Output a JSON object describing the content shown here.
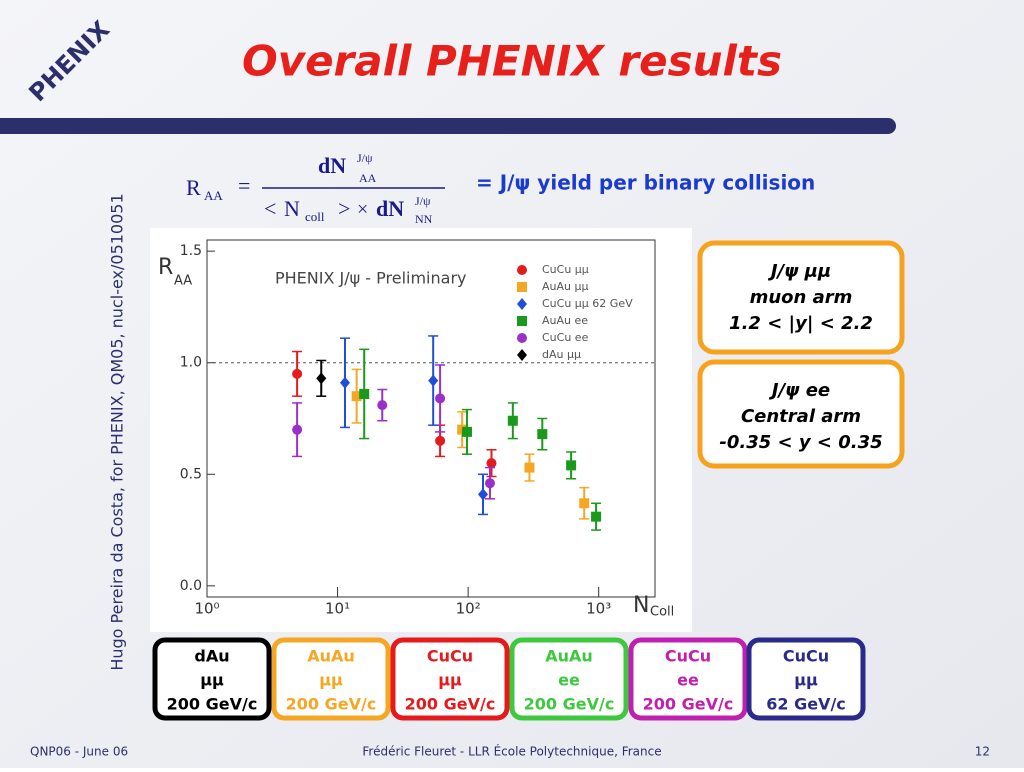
{
  "header": {
    "title": "Overall PHENIX results",
    "logo": "PHENIX"
  },
  "side_note": "Hugo Pereira da Costa, for PHENIX, QM05, nucl-ex/0510051",
  "formula": {
    "lhs": "R",
    "lhs_sub": "AA",
    "equals": "=",
    "num": "dN",
    "num_sup": "J/ψ",
    "num_sub": "AA",
    "den_open": "<",
    "den_n": "N",
    "den_n_sub": "coll",
    "den_close": ">",
    "den_times": "×",
    "den_dn": "dN",
    "den_sup": "J/ψ",
    "den_sub": "NN"
  },
  "formula_caption": "= J/ψ yield per binary collision",
  "chart_data": {
    "type": "scatter",
    "title": "PHENIX J/ψ - Preliminary",
    "ylabel": "R",
    "ylabel_sub": "AA",
    "xlabel": "N",
    "xlabel_sub": "Coll",
    "xscale": "log",
    "xlim": [
      1,
      2700
    ],
    "ylim": [
      -0.05,
      1.55
    ],
    "xticks": [
      {
        "value": 1,
        "label": "10⁰"
      },
      {
        "value": 10,
        "label": "10¹"
      },
      {
        "value": 100,
        "label": "10²"
      },
      {
        "value": 1000,
        "label": "10³"
      }
    ],
    "yticks": [
      {
        "value": 0,
        "label": "0.0"
      },
      {
        "value": 0.5,
        "label": "0.5"
      },
      {
        "value": 1,
        "label": "1.0"
      },
      {
        "value": 1.5,
        "label": "1.5"
      }
    ],
    "reference_line": 1,
    "series": [
      {
        "name": "CuCu μμ",
        "color": "#e41a1c",
        "marker": "circle",
        "x": [
          4.9,
          61,
          151
        ],
        "values": [
          0.95,
          0.65,
          0.55
        ],
        "errors": [
          0.1,
          0.07,
          0.06
        ]
      },
      {
        "name": "AuAu μμ",
        "color": "#f5a623",
        "marker": "square",
        "x": [
          14,
          90,
          295,
          775
        ],
        "values": [
          0.85,
          0.7,
          0.53,
          0.37
        ],
        "errors": [
          0.12,
          0.08,
          0.06,
          0.07
        ]
      },
      {
        "name": "CuCu μμ 62 GeV",
        "color": "#1f4fd8",
        "marker": "diamond",
        "x": [
          11.4,
          54,
          130
        ],
        "values": [
          0.91,
          0.92,
          0.41
        ],
        "errors": [
          0.2,
          0.2,
          0.09
        ]
      },
      {
        "name": "AuAu ee",
        "color": "#1a9a1a",
        "marker": "square",
        "x": [
          16,
          98,
          220,
          370,
          615,
          955
        ],
        "values": [
          0.86,
          0.69,
          0.74,
          0.68,
          0.54,
          0.31
        ],
        "errors": [
          0.2,
          0.1,
          0.08,
          0.07,
          0.06,
          0.06
        ]
      },
      {
        "name": "CuCu ee",
        "color": "#9b30c8",
        "marker": "circle",
        "x": [
          4.9,
          22,
          61,
          147
        ],
        "values": [
          0.7,
          0.81,
          0.84,
          0.46
        ],
        "errors": [
          0.12,
          0.07,
          0.15,
          0.07
        ]
      },
      {
        "name": "dAu μμ",
        "color": "#000000",
        "marker": "diamond",
        "x": [
          7.5
        ],
        "values": [
          0.93
        ],
        "errors": [
          0.08
        ]
      }
    ]
  },
  "boxes": [
    {
      "lines": [
        "J/ψ    μμ",
        "muon arm",
        "1.2 < |y| < 2.2"
      ]
    },
    {
      "lines": [
        "J/ψ    ee",
        "Central arm",
        "-0.35 < y < 0.35"
      ]
    }
  ],
  "buttons": [
    {
      "color": "#000000",
      "lines": [
        "dAu",
        "μμ",
        "200 GeV/c"
      ]
    },
    {
      "color": "#f5a623",
      "lines": [
        "AuAu",
        "μμ",
        "200 GeV/c"
      ]
    },
    {
      "color": "#e41a1c",
      "lines": [
        "CuCu",
        "μμ",
        "200 GeV/c"
      ]
    },
    {
      "color": "#3ec83e",
      "lines": [
        "AuAu",
        "ee",
        "200 GeV/c"
      ]
    },
    {
      "color": "#c020b0",
      "lines": [
        "CuCu",
        "ee",
        "200 GeV/c"
      ]
    },
    {
      "color": "#2a2a8a",
      "lines": [
        "CuCu",
        "μμ",
        "62 GeV/c"
      ]
    }
  ],
  "footer": {
    "left": "QNP06 - June 06",
    "center": "Frédéric Fleuret - LLR École Polytechnique, France",
    "right": "12"
  }
}
